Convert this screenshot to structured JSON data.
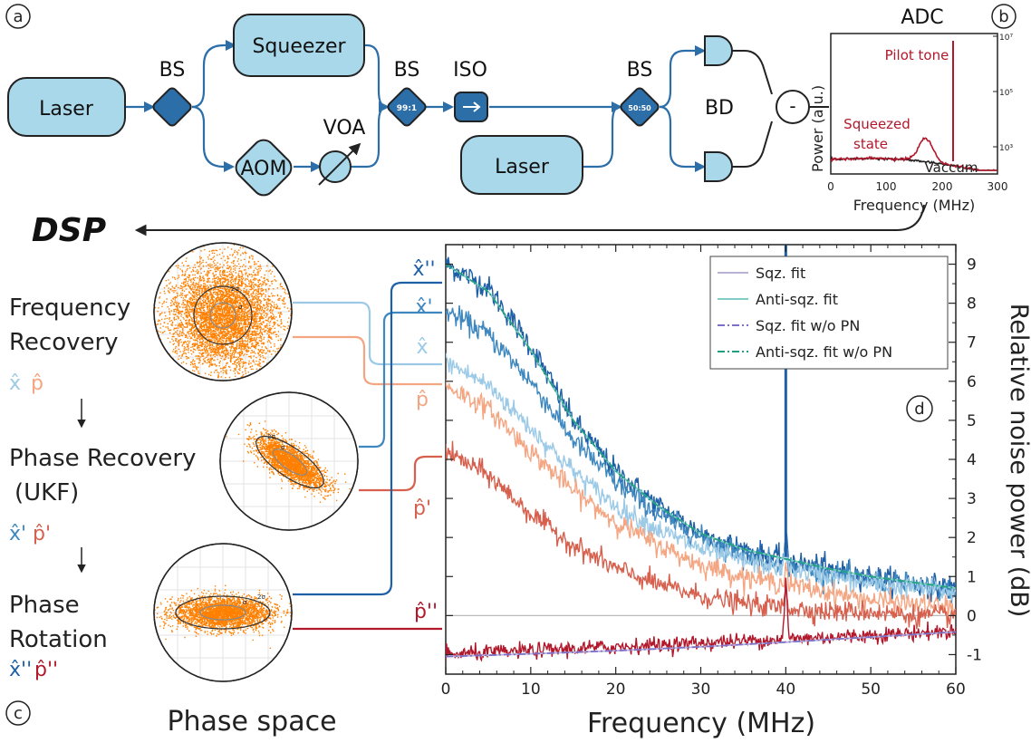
{
  "panel_labels": {
    "a": "a",
    "b": "b",
    "c": "c",
    "d": "d"
  },
  "setup": {
    "laser1": "Laser",
    "laser2": "Laser",
    "squeezer": "Squeezer",
    "aom": "AOM",
    "voa": "VOA",
    "bs1": "BS",
    "bs2": "BS",
    "bs2_ratio": "99:1",
    "bs3": "BS",
    "bs3_ratio": "50:50",
    "iso": "ISO",
    "bd": "BD",
    "minus": "-"
  },
  "adc": {
    "title": "ADC",
    "ylabel": "Power (a.u.)",
    "xlabel": "Frequency (MHz)",
    "xticks": [
      "0",
      "100",
      "200",
      "300"
    ],
    "yticks": [
      "10³",
      "10⁵",
      "10⁷"
    ],
    "pilot_tone": "Pilot tone",
    "squeezed_state_1": "Squeezed",
    "squeezed_state_2": "state",
    "vacuum": "Vaccum"
  },
  "dsp": {
    "title": "DSP",
    "step1_line1": "Frequency",
    "step1_line2": "Recovery",
    "step1_x": "x̂",
    "step1_p": "p̂",
    "step2_line1": "Phase Recovery",
    "step2_line2": "(UKF)",
    "step2_x": "x̂'",
    "step2_p": "p̂'",
    "step3_line1": "Phase",
    "step3_line2": "Rotation",
    "step3_x": "x̂''",
    "step3_p": "p̂''",
    "phase_space": "Phase space",
    "sigma": "σ",
    "two_sigma": "2σ"
  },
  "colors": {
    "box_fill": "#a8d8ea",
    "box_dark": "#2c6ea8",
    "x": "#9ccae6",
    "p": "#f4a582",
    "x1": "#3e88bf",
    "p1": "#d6604d",
    "x2": "#1f5fa6",
    "p2": "#b2182b",
    "orange": "#ff8000",
    "fit_sqz": "#b9b1d6",
    "fit_anti": "#7fcdc4",
    "fit_sqz_wopn": "#7b6fc9",
    "fit_anti_wopn": "#1fa07f"
  },
  "chart_data": {
    "type": "line",
    "xlabel": "Frequency (MHz)",
    "ylabel": "Relative noise power (dB)",
    "xlim": [
      0,
      60
    ],
    "ylim": [
      -1.5,
      9.5
    ],
    "xticks": [
      0,
      10,
      20,
      30,
      40,
      50,
      60
    ],
    "yticks": [
      -1,
      0,
      1,
      2,
      3,
      4,
      5,
      6,
      7,
      8,
      9
    ],
    "grid": false,
    "legend_position": "top-right",
    "curve_labels": {
      "x2": "x̂''",
      "x1": "x̂'",
      "x": "x̂",
      "p": "p̂",
      "p1": "p̂'",
      "p2": "p̂''"
    },
    "legend": [
      "Sqz. fit",
      "Anti-sqz. fit",
      "Sqz. fit w/o PN",
      "Anti-sqz. fit w/o PN"
    ],
    "series": [
      {
        "key": "x2",
        "x": [
          0,
          5,
          10,
          15,
          20,
          25,
          30,
          35,
          40,
          45,
          50,
          55,
          60
        ],
        "values": [
          9.0,
          8.4,
          6.9,
          5.0,
          3.7,
          2.8,
          2.1,
          1.7,
          1.4,
          1.2,
          1.0,
          0.8,
          0.7
        ]
      },
      {
        "key": "x1",
        "x": [
          0,
          5,
          10,
          15,
          20,
          25,
          30,
          35,
          40,
          45,
          50,
          55,
          60
        ],
        "values": [
          7.8,
          7.2,
          6.0,
          4.5,
          3.4,
          2.6,
          2.0,
          1.6,
          1.3,
          1.1,
          0.9,
          0.8,
          0.6
        ]
      },
      {
        "key": "x",
        "x": [
          0,
          5,
          10,
          15,
          20,
          25,
          30,
          35,
          40,
          45,
          50,
          55,
          60
        ],
        "values": [
          6.5,
          5.9,
          4.8,
          3.7,
          2.8,
          2.2,
          1.7,
          1.4,
          1.2,
          1.0,
          0.8,
          0.7,
          0.6
        ]
      },
      {
        "key": "p",
        "x": [
          0,
          5,
          10,
          15,
          20,
          25,
          30,
          35,
          40,
          45,
          50,
          55,
          60
        ],
        "values": [
          5.9,
          5.3,
          4.2,
          3.2,
          2.4,
          1.8,
          1.3,
          1.0,
          0.8,
          0.6,
          0.4,
          0.3,
          0.2
        ]
      },
      {
        "key": "p1",
        "x": [
          0,
          5,
          10,
          15,
          20,
          25,
          30,
          35,
          40,
          45,
          50,
          55,
          60
        ],
        "values": [
          4.2,
          3.6,
          2.6,
          1.8,
          1.2,
          0.8,
          0.5,
          0.3,
          0.2,
          0.1,
          0.1,
          0.0,
          0.0
        ]
      },
      {
        "key": "p2",
        "x": [
          0,
          5,
          10,
          15,
          20,
          25,
          30,
          35,
          40,
          45,
          50,
          55,
          60
        ],
        "values": [
          -1.0,
          -0.95,
          -0.9,
          -0.85,
          -0.8,
          -0.75,
          -0.7,
          -0.65,
          -0.6,
          -0.55,
          -0.5,
          -0.45,
          -0.4
        ]
      },
      {
        "key": "fit_sqz",
        "x": [
          0,
          10,
          20,
          30,
          40,
          50,
          60
        ],
        "values": [
          -1.05,
          -0.98,
          -0.9,
          -0.8,
          -0.68,
          -0.55,
          -0.42
        ]
      },
      {
        "key": "fit_anti",
        "x": [
          0,
          5,
          10,
          15,
          20,
          25,
          30,
          35,
          40,
          45,
          50,
          55,
          60
        ],
        "values": [
          9.0,
          8.3,
          6.8,
          5.0,
          3.7,
          2.8,
          2.1,
          1.7,
          1.45,
          1.2,
          1.0,
          0.85,
          0.7
        ]
      },
      {
        "key": "fit_sqz_wopn",
        "x": [
          0,
          10,
          20,
          30,
          40,
          50,
          60
        ],
        "values": [
          -1.05,
          -0.98,
          -0.9,
          -0.8,
          -0.68,
          -0.55,
          -0.42
        ]
      },
      {
        "key": "fit_anti_wopn",
        "x": [
          0,
          5,
          10,
          15,
          20,
          25,
          30,
          35,
          40,
          45,
          50,
          55,
          60
        ],
        "values": [
          9.0,
          8.3,
          6.8,
          5.0,
          3.7,
          2.8,
          2.1,
          1.7,
          1.45,
          1.2,
          1.0,
          0.85,
          0.7
        ]
      }
    ],
    "pilot_tone_x": 40,
    "zero_line": 0
  }
}
